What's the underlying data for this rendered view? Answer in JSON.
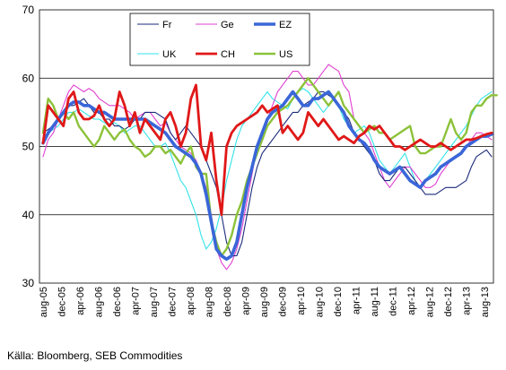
{
  "chart_data": {
    "type": "line",
    "ylim": [
      30,
      70
    ],
    "yticks": [
      30,
      40,
      50,
      60,
      70
    ],
    "x_tick_labels": [
      "aug-05",
      "dec-05",
      "apr-06",
      "aug-06",
      "dec-06",
      "apr-07",
      "aug-07",
      "dec-07",
      "apr-08",
      "aug-08",
      "dec-08",
      "apr-09",
      "aug-09",
      "dec-09",
      "apr-10",
      "aug-10",
      "dec-10",
      "apr-11",
      "aug-11",
      "dec-11",
      "apr-12",
      "aug-12",
      "dec-12",
      "apr-13",
      "aug-13"
    ],
    "grid": true,
    "legend_position": "top-center",
    "series": [
      {
        "name": "Fr",
        "color": "#1a2a7a",
        "width": 1.1,
        "values": [
          52,
          52.5,
          53,
          54,
          55,
          56,
          56,
          56.5,
          57,
          56,
          55,
          55,
          54,
          54,
          53,
          53,
          52.5,
          53,
          54,
          54,
          55,
          55,
          55,
          54.5,
          54,
          52,
          51,
          52,
          53,
          52,
          51,
          50,
          48,
          46,
          44,
          40,
          36,
          34,
          34,
          36,
          40,
          44,
          47,
          49,
          50,
          51,
          52,
          53,
          54,
          55,
          55,
          56,
          56.5,
          57,
          58,
          58,
          57.5,
          57,
          56,
          55,
          54,
          52,
          51,
          50,
          49,
          48,
          46,
          45,
          45,
          46,
          47,
          47,
          46,
          45,
          44,
          43,
          43,
          43,
          43.5,
          44,
          44,
          44,
          44.5,
          45,
          47,
          48.5,
          49,
          49.5,
          48.5
        ]
      },
      {
        "name": "Ge",
        "color": "#e040d0",
        "width": 1.1,
        "values": [
          48.5,
          51,
          52,
          54,
          56,
          58,
          59,
          58.5,
          58,
          58.5,
          58,
          57,
          56.5,
          56,
          56,
          56,
          55.5,
          55,
          54,
          54.5,
          55,
          55,
          54,
          53,
          53.5,
          52,
          51,
          50,
          49.5,
          49,
          48,
          46,
          44,
          40,
          35,
          33,
          32,
          33,
          35,
          38,
          42,
          46,
          50,
          52,
          54,
          56,
          58,
          59,
          60,
          61,
          61,
          60,
          59,
          59,
          60,
          61,
          62,
          61.5,
          61,
          59,
          58,
          54,
          53,
          52,
          51,
          49,
          47,
          45,
          44,
          45,
          46,
          47,
          47,
          46,
          45,
          44,
          44,
          44.5,
          46,
          47,
          48,
          48.5,
          49,
          50,
          51,
          52,
          52,
          51.5,
          51
        ]
      },
      {
        "name": "EZ",
        "color": "#3a66d8",
        "width": 3.6,
        "values": [
          50.5,
          52,
          53,
          54,
          55,
          56,
          56.5,
          56.5,
          56,
          56,
          55.5,
          55,
          55,
          54.5,
          54,
          54,
          54,
          54,
          54,
          54,
          54,
          53.5,
          53,
          52.5,
          52,
          51,
          50,
          49.5,
          49,
          48.5,
          47.5,
          46,
          43,
          39,
          35,
          34,
          33.5,
          34,
          36,
          40,
          44,
          47,
          50,
          52,
          54,
          55,
          55.5,
          56,
          57,
          58,
          57,
          56,
          56,
          57,
          57,
          57.5,
          58,
          57,
          56,
          55,
          53,
          52,
          51,
          50.5,
          49.5,
          48,
          47,
          46.5,
          46,
          46.5,
          47,
          46,
          45,
          44.5,
          44,
          45,
          45.5,
          46,
          47,
          47.5,
          48,
          48.5,
          49,
          50,
          50.5,
          51,
          51.5,
          51.5,
          51.8
        ]
      },
      {
        "name": "UK",
        "color": "#33e3e8",
        "width": 1.1,
        "values": [
          51,
          52,
          52.5,
          53,
          54,
          55,
          55,
          55.5,
          55,
          54.5,
          54,
          54,
          53.5,
          53,
          53.5,
          53,
          52,
          52.5,
          53,
          53,
          52,
          51,
          50,
          50,
          50.5,
          49,
          47,
          45,
          44,
          42,
          40,
          37,
          35,
          36,
          38,
          41,
          45,
          48,
          51,
          53,
          54,
          55,
          56,
          57,
          58,
          57,
          56.5,
          56,
          55.5,
          57,
          58,
          58.5,
          58,
          57,
          56,
          55,
          56,
          57,
          56,
          54,
          53,
          52,
          52.5,
          53,
          52,
          50,
          48,
          47,
          46,
          47,
          48,
          49,
          47,
          45,
          44,
          45,
          46,
          47,
          48,
          49,
          50,
          51,
          52,
          53,
          54.5,
          56,
          57,
          57.5,
          58
        ]
      },
      {
        "name": "CH",
        "color": "#e01818",
        "width": 2.8,
        "values": [
          50.5,
          56,
          55,
          54,
          53,
          57,
          58,
          55,
          54,
          54,
          54.5,
          56,
          54,
          53,
          54,
          58,
          56,
          53,
          55,
          52,
          54,
          53,
          52,
          51,
          54,
          55,
          53,
          50,
          52,
          57,
          59,
          50,
          48,
          52,
          45,
          40,
          50,
          52,
          53,
          53.5,
          54,
          54.5,
          55,
          56,
          55,
          55.5,
          56,
          52,
          53,
          52,
          51,
          52,
          55,
          54,
          53,
          54,
          53,
          52,
          51,
          51.5,
          51,
          50.5,
          51.5,
          52,
          53,
          52.5,
          53,
          52,
          51,
          50,
          50,
          49.5,
          50,
          50.5,
          51,
          50.5,
          50,
          50,
          50.5,
          50,
          49.5,
          50,
          50.5,
          51,
          51,
          51.2,
          51.5,
          51.8,
          52
        ]
      },
      {
        "name": "US",
        "color": "#8cc23a",
        "width": 2.4,
        "values": [
          52,
          57,
          56,
          54,
          55,
          54,
          55,
          53,
          52,
          51,
          50,
          51,
          53,
          52,
          51,
          52,
          52.5,
          51,
          50,
          49.5,
          48.5,
          49,
          50,
          50,
          49,
          49.5,
          48.5,
          47.5,
          49,
          50,
          47,
          46,
          46,
          39,
          36,
          34,
          35,
          37,
          40,
          42,
          45,
          47,
          49,
          51,
          53,
          54,
          55,
          55.5,
          56,
          57,
          58,
          59,
          60,
          59,
          58,
          57,
          56,
          57,
          58,
          56,
          55,
          54,
          53,
          52,
          52.5,
          53,
          52,
          52,
          51,
          51.5,
          52,
          52.5,
          53,
          50,
          49,
          49,
          49.5,
          50,
          50,
          52,
          54,
          52,
          51,
          52,
          55,
          56,
          56,
          57,
          57.5,
          57.5
        ]
      }
    ]
  },
  "source_text": "Källa: Bloomberg, SEB Commodities"
}
